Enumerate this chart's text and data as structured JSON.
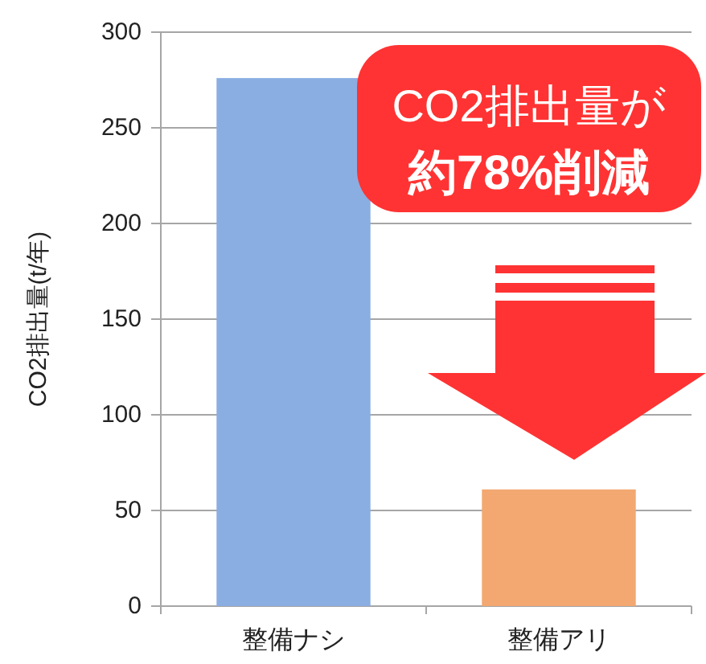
{
  "chart_data": {
    "type": "bar",
    "ylabel": "CO2排出量(t/年)",
    "categories": [
      "整備ナシ",
      "整備アリ"
    ],
    "values": [
      276,
      61
    ],
    "colors": [
      "#8aaee2",
      "#f2a870"
    ],
    "ylim": [
      0,
      300
    ],
    "yticks": [
      0,
      50,
      100,
      150,
      200,
      250,
      300
    ],
    "grid": "y",
    "annotations": [
      "CO2排出量が",
      "約78%削減"
    ]
  }
}
